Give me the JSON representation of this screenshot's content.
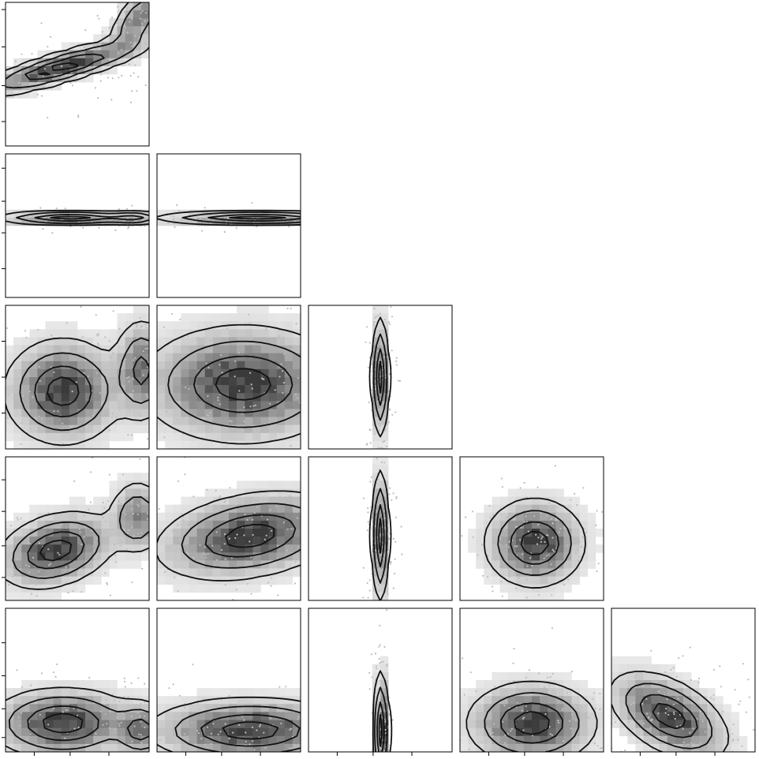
{
  "chart_data": {
    "type": "corner",
    "title": "",
    "n_params": 6,
    "grid": false,
    "legend": "none",
    "colors": {
      "frame": "#000000",
      "contour": "#111111",
      "density_low": "#eeeeee",
      "density_high": "#3a3a3a",
      "sample": "#bdbdbd"
    },
    "axes_range": [
      0,
      1
    ],
    "panels": [
      {
        "id": "p1-0",
        "x_param": 0,
        "y_param": 1,
        "tick_positions": [
          0.17,
          0.42,
          0.69,
          0.95
        ],
        "modes": [
          {
            "x": 0.4,
            "y": 0.55,
            "sx": 0.3,
            "sy": 0.1,
            "rho": 0.85,
            "w": 1.0
          },
          {
            "x": 0.92,
            "y": 0.88,
            "sx": 0.1,
            "sy": 0.12,
            "rho": 0.6,
            "w": 0.6
          }
        ]
      },
      {
        "id": "p2-0",
        "x_param": 0,
        "y_param": 2,
        "tick_positions": [
          0.2,
          0.45,
          0.67,
          0.9
        ],
        "modes": [
          {
            "x": 0.45,
            "y": 0.55,
            "sx": 0.25,
            "sy": 0.022,
            "rho": 0.0,
            "w": 1.0
          },
          {
            "x": 0.9,
            "y": 0.55,
            "sx": 0.1,
            "sy": 0.022,
            "rho": 0.0,
            "w": 0.6
          }
        ]
      },
      {
        "id": "p2-1",
        "x_param": 1,
        "y_param": 2,
        "tick_positions": [
          0.2,
          0.45,
          0.67,
          0.9
        ],
        "modes": [
          {
            "x": 0.7,
            "y": 0.55,
            "sx": 0.35,
            "sy": 0.022,
            "rho": 0.0,
            "w": 1.0
          }
        ]
      },
      {
        "id": "p3-0",
        "x_param": 0,
        "y_param": 3,
        "tick_positions": [
          0.25,
          0.5,
          0.75
        ],
        "modes": [
          {
            "x": 0.4,
            "y": 0.4,
            "sx": 0.2,
            "sy": 0.18,
            "rho": 0.0,
            "w": 1.0
          },
          {
            "x": 0.95,
            "y": 0.55,
            "sx": 0.1,
            "sy": 0.18,
            "rho": 0.0,
            "w": 0.7
          }
        ]
      },
      {
        "id": "p3-1",
        "x_param": 1,
        "y_param": 3,
        "tick_positions": [
          0.25,
          0.5,
          0.75
        ],
        "modes": [
          {
            "x": 0.6,
            "y": 0.45,
            "sx": 0.35,
            "sy": 0.2,
            "rho": 0.0,
            "w": 1.0
          }
        ]
      },
      {
        "id": "p3-2",
        "x_param": 2,
        "y_param": 3,
        "tick_positions": [
          0.25,
          0.5,
          0.75
        ],
        "modes": [
          {
            "x": 0.5,
            "y": 0.5,
            "sx": 0.03,
            "sy": 0.2,
            "rho": 0.0,
            "w": 1.0
          }
        ]
      },
      {
        "id": "p4-0",
        "x_param": 0,
        "y_param": 4,
        "tick_positions": [
          0.16,
          0.38,
          0.62,
          0.84
        ],
        "modes": [
          {
            "x": 0.35,
            "y": 0.35,
            "sx": 0.2,
            "sy": 0.13,
            "rho": 0.3,
            "w": 1.0
          },
          {
            "x": 0.92,
            "y": 0.58,
            "sx": 0.1,
            "sy": 0.13,
            "rho": 0.0,
            "w": 0.6
          }
        ]
      },
      {
        "id": "p4-1",
        "x_param": 1,
        "y_param": 4,
        "tick_positions": [
          0.16,
          0.38,
          0.62,
          0.84
        ],
        "modes": [
          {
            "x": 0.65,
            "y": 0.45,
            "sx": 0.32,
            "sy": 0.15,
            "rho": 0.3,
            "w": 1.0
          }
        ]
      },
      {
        "id": "p4-2",
        "x_param": 2,
        "y_param": 4,
        "tick_positions": [
          0.16,
          0.38,
          0.62,
          0.84
        ],
        "modes": [
          {
            "x": 0.5,
            "y": 0.45,
            "sx": 0.03,
            "sy": 0.22,
            "rho": 0.0,
            "w": 1.0
          }
        ]
      },
      {
        "id": "p4-3",
        "x_param": 3,
        "y_param": 4,
        "tick_positions": [
          0.16,
          0.38,
          0.62,
          0.84
        ],
        "modes": [
          {
            "x": 0.52,
            "y": 0.4,
            "sx": 0.17,
            "sy": 0.15,
            "rho": 0.0,
            "w": 1.0
          }
        ]
      },
      {
        "id": "p5-0",
        "x_param": 0,
        "y_param": 5,
        "tick_positions": [
          0.1,
          0.3,
          0.53,
          0.76
        ],
        "modes": [
          {
            "x": 0.4,
            "y": 0.2,
            "sx": 0.25,
            "sy": 0.12,
            "rho": 0.0,
            "w": 1.0
          },
          {
            "x": 0.95,
            "y": 0.15,
            "sx": 0.1,
            "sy": 0.1,
            "rho": 0.0,
            "w": 0.7
          }
        ]
      },
      {
        "id": "p5-1",
        "x_param": 1,
        "y_param": 5,
        "tick_positions": [
          0.1,
          0.3,
          0.53,
          0.76
        ],
        "modes": [
          {
            "x": 0.65,
            "y": 0.15,
            "sx": 0.35,
            "sy": 0.11,
            "rho": 0.0,
            "w": 1.0
          }
        ]
      },
      {
        "id": "p5-2",
        "x_param": 2,
        "y_param": 5,
        "tick_positions": [
          0.1,
          0.3,
          0.53,
          0.76
        ],
        "modes": [
          {
            "x": 0.51,
            "y": 0.15,
            "sx": 0.025,
            "sy": 0.2,
            "rho": 0.0,
            "w": 1.0
          }
        ]
      },
      {
        "id": "p5-3",
        "x_param": 3,
        "y_param": 5,
        "tick_positions": [
          0.1,
          0.3,
          0.53,
          0.76
        ],
        "modes": [
          {
            "x": 0.5,
            "y": 0.2,
            "sx": 0.22,
            "sy": 0.14,
            "rho": 0.0,
            "w": 1.0
          }
        ]
      },
      {
        "id": "p5-4",
        "x_param": 4,
        "y_param": 5,
        "tick_positions": [
          0.1,
          0.3,
          0.53,
          0.76
        ],
        "modes": [
          {
            "x": 0.4,
            "y": 0.25,
            "sx": 0.2,
            "sy": 0.15,
            "rho": -0.5,
            "w": 1.0
          }
        ]
      }
    ]
  }
}
